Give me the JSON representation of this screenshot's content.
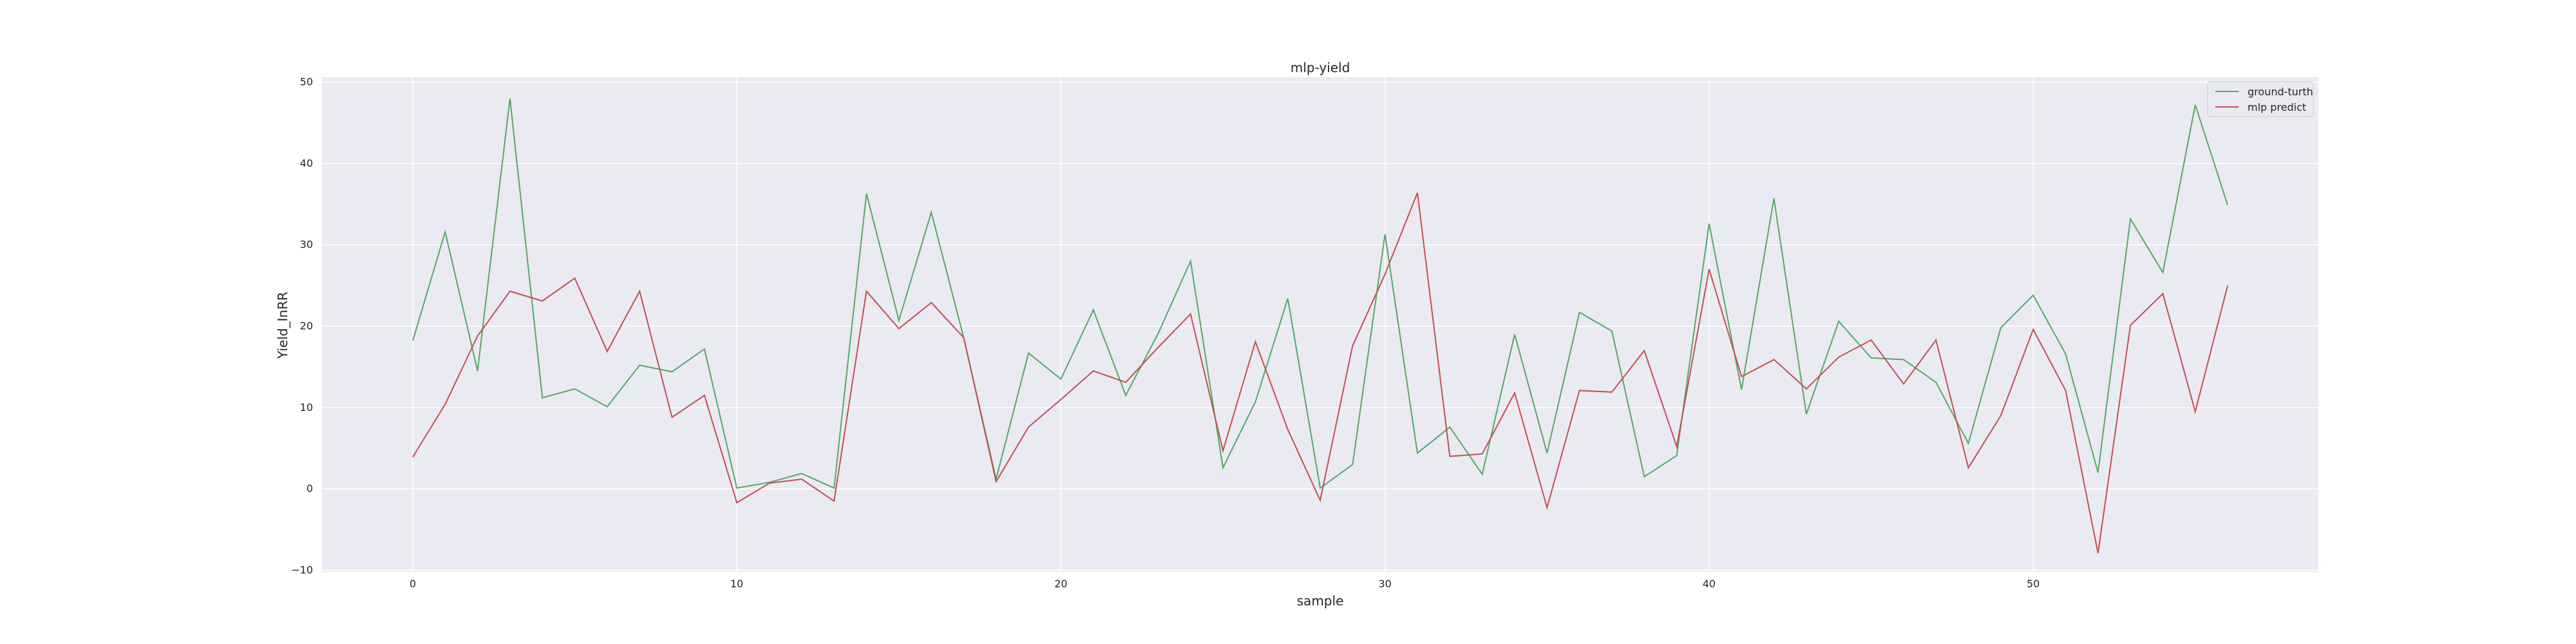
{
  "chart_data": {
    "type": "line",
    "title": "mlp-yield",
    "xlabel": "sample",
    "ylabel": "Yield_InRR",
    "xlim": [
      -2.8,
      58.8
    ],
    "ylim": [
      -10.2,
      50.6
    ],
    "xticks": [
      0,
      10,
      20,
      30,
      40,
      50
    ],
    "yticks": [
      -10,
      0,
      10,
      20,
      30,
      40,
      50
    ],
    "grid": true,
    "background": "#EAEAF2",
    "legend_position": "top-right",
    "x": [
      0,
      1,
      2,
      3,
      4,
      5,
      6,
      7,
      8,
      9,
      10,
      11,
      12,
      13,
      14,
      15,
      16,
      17,
      18,
      19,
      20,
      21,
      22,
      23,
      24,
      25,
      26,
      27,
      28,
      29,
      30,
      31,
      32,
      33,
      34,
      35,
      36,
      37,
      38,
      39,
      40,
      41,
      42,
      43,
      44,
      45,
      46,
      47,
      48,
      49,
      50,
      51,
      52,
      53,
      54,
      55,
      56
    ],
    "series": [
      {
        "name": "ground-turth",
        "color": "#55A868",
        "values": [
          18.2,
          31.6,
          14.5,
          48.0,
          11.2,
          12.3,
          10.1,
          15.2,
          14.4,
          17.2,
          0.1,
          0.8,
          1.9,
          0.1,
          36.3,
          20.7,
          34.0,
          18.6,
          1.2,
          16.7,
          13.5,
          22.0,
          11.5,
          19.1,
          28.0,
          2.6,
          10.7,
          23.4,
          0.1,
          3.0,
          31.3,
          4.4,
          7.6,
          1.8,
          19.0,
          4.4,
          21.7,
          19.4,
          1.5,
          4.1,
          32.6,
          12.2,
          35.7,
          9.2,
          20.6,
          16.1,
          15.9,
          13.1,
          5.6,
          19.8,
          23.8,
          16.6,
          2.0,
          33.2,
          26.6,
          47.2,
          34.9
        ]
      },
      {
        "name": "mlp predict",
        "color": "#C44E52",
        "values": [
          3.9,
          10.4,
          18.8,
          24.3,
          23.1,
          25.9,
          16.9,
          24.3,
          8.8,
          11.5,
          -1.7,
          0.7,
          1.2,
          -1.5,
          24.3,
          19.7,
          22.9,
          18.6,
          0.9,
          7.6,
          11.0,
          14.5,
          13.1,
          17.4,
          21.5,
          4.7,
          18.1,
          7.3,
          -1.4,
          17.6,
          26.4,
          36.4,
          4.0,
          4.3,
          11.8,
          -2.3,
          12.1,
          11.9,
          17.0,
          5.2,
          27.0,
          13.8,
          15.9,
          12.3,
          16.2,
          18.3,
          12.9,
          18.3,
          2.6,
          9.0,
          19.6,
          12.1,
          -7.9,
          20.1,
          24.0,
          9.5,
          25.0
        ]
      }
    ]
  }
}
